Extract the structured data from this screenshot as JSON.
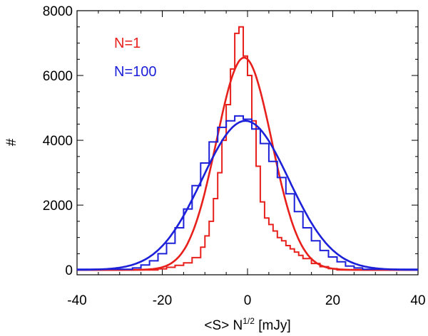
{
  "chart_data": {
    "type": "line",
    "xlabel_main": "<S> N",
    "xlabel_sup": "1/2",
    "xlabel_unit": " [mJy]",
    "ylabel": "#",
    "xlim": [
      -40,
      40
    ],
    "ylim": [
      -150,
      8000
    ],
    "x_ticks": [
      -40,
      -20,
      0,
      20,
      40
    ],
    "y_ticks": [
      0,
      2000,
      4000,
      6000,
      8000
    ],
    "legend_position": "top-left",
    "series": [
      {
        "name": "N=1",
        "color": "#e8201c",
        "bin_edges": [
          -40,
          -21,
          -19,
          -17,
          -15,
          -13,
          -11,
          -10,
          -9,
          -8,
          -7,
          -6,
          -5,
          -4,
          -3,
          -2,
          -1,
          0,
          1,
          2,
          3,
          4,
          5,
          6,
          7,
          8,
          9,
          10,
          11,
          12,
          13,
          15,
          17,
          19,
          21,
          40
        ],
        "counts": [
          0,
          30,
          80,
          140,
          220,
          380,
          700,
          1050,
          1500,
          2200,
          3000,
          4000,
          5100,
          6200,
          7300,
          7500,
          6600,
          6000,
          4600,
          3200,
          2100,
          1600,
          1400,
          1200,
          1000,
          900,
          750,
          650,
          550,
          450,
          350,
          200,
          100,
          40,
          0
        ],
        "fit": {
          "amplitude": 6550,
          "mean": -0.8,
          "sigma": 6.5
        }
      },
      {
        "name": "N=100",
        "color": "#1c20d8",
        "bin_edges": [
          -40,
          -27,
          -25,
          -23,
          -21,
          -19,
          -17,
          -15,
          -13,
          -11,
          -9,
          -7,
          -5,
          -3,
          -1,
          1,
          3,
          5,
          7,
          9,
          11,
          13,
          15,
          17,
          19,
          21,
          23,
          25,
          27,
          40
        ],
        "counts": [
          20,
          60,
          150,
          280,
          500,
          820,
          1300,
          1880,
          2600,
          3300,
          3950,
          4400,
          4600,
          4750,
          4650,
          4350,
          3900,
          3350,
          2850,
          2350,
          1800,
          1300,
          900,
          600,
          400,
          250,
          120,
          60,
          20
        ],
        "fit": {
          "amplitude": 4600,
          "mean": -0.5,
          "sigma": 10.2
        }
      }
    ]
  }
}
